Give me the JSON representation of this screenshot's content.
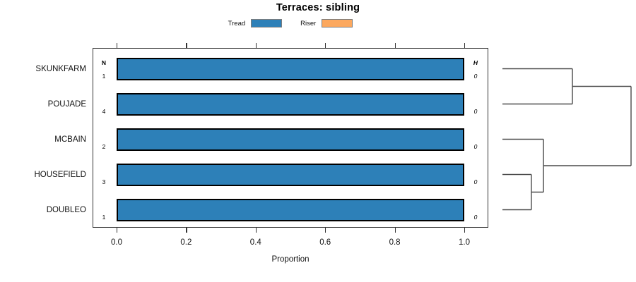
{
  "chart_data": {
    "type": "bar",
    "orientation": "horizontal",
    "stacked": true,
    "title": "Terraces: sibling",
    "xlabel": "Proportion",
    "xlim": [
      0.0,
      1.0
    ],
    "xticks": [
      0.0,
      0.2,
      0.4,
      0.6,
      0.8,
      1.0
    ],
    "xtick_labels": [
      "0.0",
      "0.2",
      "0.4",
      "0.6",
      "0.8",
      "1.0"
    ],
    "grid": false,
    "categories": [
      "SKUNKFARM",
      "POUJADE",
      "MCBAIN",
      "HOUSEFIELD",
      "DOUBLEO"
    ],
    "series": [
      {
        "name": "Tread",
        "color": "#2d80b8",
        "values": [
          1.0,
          1.0,
          1.0,
          1.0,
          1.0
        ]
      },
      {
        "name": "Riser",
        "color": "#fca85e",
        "values": [
          0.0,
          0.0,
          0.0,
          0.0,
          0.0
        ]
      }
    ],
    "legend": {
      "position": "top",
      "items": [
        {
          "label": "Tread",
          "color": "#2d80b8"
        },
        {
          "label": "Riser",
          "color": "#fca85e"
        }
      ]
    },
    "n_column": {
      "header": "N",
      "values": [
        "1",
        "4",
        "2",
        "3",
        "1"
      ]
    },
    "h_column": {
      "header": "H",
      "values": [
        "0",
        "0",
        "0",
        "0",
        "0"
      ]
    },
    "dendrogram": {
      "leaves": [
        "SKUNKFARM",
        "POUJADE",
        "MCBAIN",
        "HOUSEFIELD",
        "DOUBLEO"
      ],
      "merges": [
        {
          "children": [
            {
              "leaf": 0
            },
            {
              "leaf": 1
            }
          ],
          "x": 0.544
        },
        {
          "children": [
            {
              "leaf": 3
            },
            {
              "leaf": 4
            }
          ],
          "x": 0.225
        },
        {
          "children": [
            {
              "leaf": 2
            },
            {
              "merge": 1
            }
          ],
          "x": 0.319
        },
        {
          "children": [
            {
              "merge": 0
            },
            {
              "merge": 2
            }
          ],
          "x": 1.0
        }
      ],
      "line_color": "#4a4a4a"
    },
    "colors": {
      "bar_border": "#000000",
      "box_border": "#333333",
      "tread_fill": "#2d80b8",
      "riser_fill": "#fca85e"
    }
  }
}
